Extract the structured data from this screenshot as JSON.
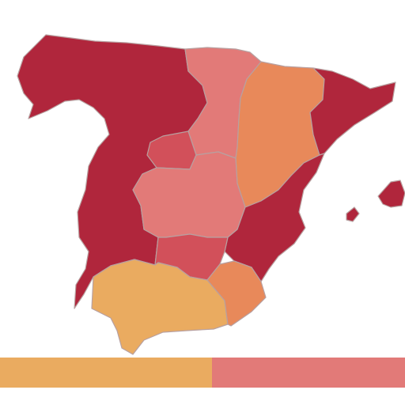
{
  "colors": {
    "background": "#ffffff",
    "dark_red": "#b0263c",
    "pink": "#e27a78",
    "orange": "#e8895a",
    "light_orange": "#eaab60",
    "rose": "#d2505a",
    "border": "#b8a0a0"
  },
  "regions": [
    {
      "name": "northwest-west",
      "color_key": "dark_red"
    },
    {
      "name": "north-central",
      "color_key": "pink"
    },
    {
      "name": "northeast-ebro",
      "color_key": "orange"
    },
    {
      "name": "catalonia",
      "color_key": "dark_red"
    },
    {
      "name": "madrid",
      "color_key": "rose"
    },
    {
      "name": "central-castilla",
      "color_key": "pink"
    },
    {
      "name": "east-levante",
      "color_key": "dark_red"
    },
    {
      "name": "south-central",
      "color_key": "rose"
    },
    {
      "name": "andalusia",
      "color_key": "light_orange"
    },
    {
      "name": "murcia-southeast",
      "color_key": "orange"
    },
    {
      "name": "balearic-islands",
      "color_key": "dark_red"
    }
  ],
  "legend": {
    "segments": [
      {
        "label": "",
        "color_key": "light_orange"
      },
      {
        "label": "",
        "color_key": "pink"
      }
    ]
  }
}
